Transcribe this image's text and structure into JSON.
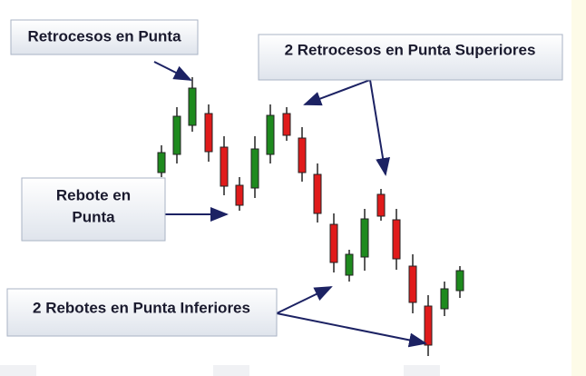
{
  "callouts": {
    "retrocesos_en_punta": "Retrocesos en Punta",
    "retrocesos_superiores": "2 Retrocesos en Punta  Superiores",
    "rebote_en_punta": [
      "Rebote en",
      "Punta"
    ],
    "rebotes_inferiores": "2 Rebotes en Punta  Inferiores"
  }
}
